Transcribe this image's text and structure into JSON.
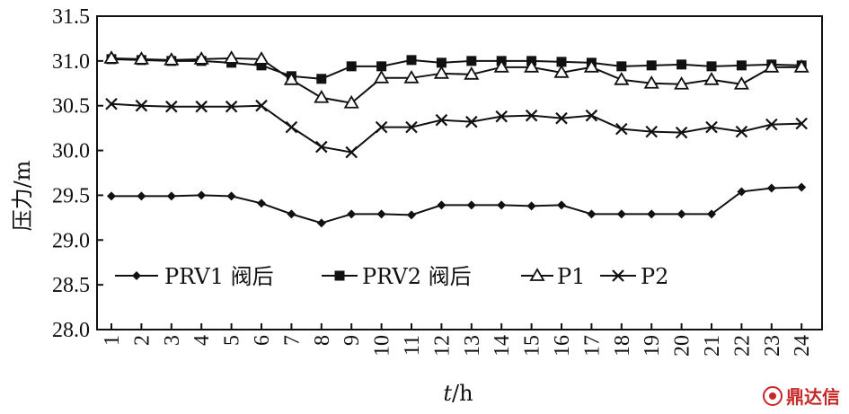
{
  "chart_data": {
    "type": "line",
    "xlabel_italic": "t",
    "xlabel_rest": "/h",
    "ylabel": "压力/m",
    "ylim": [
      28.0,
      31.5
    ],
    "yticks": [
      "28.0",
      "28.5",
      "29.0",
      "29.5",
      "30.0",
      "30.5",
      "31.0",
      "31.5"
    ],
    "categories": [
      "1",
      "2",
      "3",
      "4",
      "5",
      "6",
      "7",
      "8",
      "9",
      "10",
      "11",
      "12",
      "13",
      "14",
      "15",
      "16",
      "17",
      "18",
      "19",
      "20",
      "21",
      "22",
      "23",
      "24"
    ],
    "legend_position": "lower-center",
    "series": [
      {
        "name": "PRV1 阀后",
        "marker": "diamond",
        "values": [
          29.49,
          29.49,
          29.49,
          29.5,
          29.49,
          29.41,
          29.29,
          29.19,
          29.29,
          29.29,
          29.28,
          29.39,
          29.39,
          29.39,
          29.38,
          29.39,
          29.29,
          29.29,
          29.29,
          29.29,
          29.29,
          29.54,
          29.58,
          29.59
        ]
      },
      {
        "name": "PRV2 阀后",
        "marker": "square",
        "values": [
          31.02,
          31.01,
          31.0,
          31.0,
          30.98,
          30.95,
          30.83,
          30.8,
          30.94,
          30.94,
          31.01,
          30.98,
          31.0,
          31.0,
          31.0,
          30.99,
          30.98,
          30.94,
          30.95,
          30.96,
          30.94,
          30.95,
          30.96,
          30.95
        ]
      },
      {
        "name": "P1",
        "marker": "triangle",
        "values": [
          31.03,
          31.02,
          31.01,
          31.02,
          31.03,
          31.02,
          30.79,
          30.59,
          30.53,
          30.81,
          30.81,
          30.86,
          30.85,
          30.93,
          30.93,
          30.87,
          30.93,
          30.79,
          30.75,
          30.74,
          30.79,
          30.74,
          30.93,
          30.93
        ]
      },
      {
        "name": "P2",
        "marker": "x",
        "values": [
          30.52,
          30.5,
          30.49,
          30.49,
          30.49,
          30.5,
          30.26,
          30.04,
          29.98,
          30.26,
          30.26,
          30.34,
          30.32,
          30.38,
          30.39,
          30.36,
          30.39,
          30.24,
          30.21,
          30.2,
          30.26,
          30.21,
          30.29,
          30.3
        ]
      }
    ]
  },
  "watermark": {
    "text": "鼎达信",
    "logo_color": "#c62828",
    "text_color": "#c62828"
  }
}
